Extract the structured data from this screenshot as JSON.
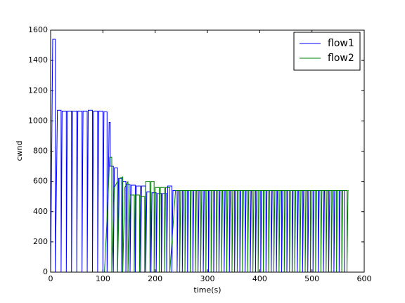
{
  "chart_data": {
    "type": "line",
    "xlabel": "time(s)",
    "ylabel": "cwnd",
    "xlim": [
      0,
      600
    ],
    "xticks": [
      0,
      100,
      200,
      300,
      400,
      500,
      600
    ],
    "ylim": [
      0,
      1600
    ],
    "yticks": [
      0,
      200,
      400,
      600,
      800,
      1000,
      1200,
      1400,
      1600
    ],
    "grid": false,
    "legend": "upper right",
    "series": [
      {
        "name": "flow1",
        "color": "#0000ff",
        "x": [
          0,
          4,
          9,
          9,
          13,
          20,
          20,
          22,
          30,
          30,
          32,
          40,
          40,
          42,
          50,
          50,
          52,
          60,
          60,
          62,
          70,
          70,
          72,
          80,
          80,
          82,
          90,
          90,
          92,
          100,
          100,
          102,
          108,
          108,
          112,
          114,
          114,
          120,
          120,
          122,
          128,
          128,
          130,
          136,
          136,
          138,
          144,
          144,
          146,
          152,
          152,
          154,
          162,
          162,
          164,
          172,
          172,
          174,
          182,
          182,
          184,
          192,
          192,
          194,
          202,
          202,
          204,
          212,
          212,
          214,
          222,
          222,
          224,
          232,
          232,
          234,
          242,
          242,
          244,
          252,
          252,
          254,
          262,
          262,
          264,
          272,
          272,
          274,
          282,
          282,
          284,
          292,
          292,
          294,
          302,
          302,
          304,
          312,
          312,
          314,
          322,
          322,
          324,
          332,
          332,
          334,
          342,
          342,
          344,
          352,
          352,
          354,
          362,
          362,
          364,
          372,
          372,
          374,
          382,
          382,
          384,
          392,
          392,
          394,
          402,
          402,
          404,
          412,
          412,
          414,
          422,
          422,
          424,
          432,
          432,
          434,
          442,
          442,
          444,
          452,
          452,
          454,
          462,
          462,
          464,
          472,
          472,
          474,
          482,
          482,
          484,
          492,
          492,
          494,
          502,
          502,
          504,
          512,
          512,
          514,
          522,
          522,
          524,
          532,
          532,
          534,
          542,
          542,
          544,
          552,
          552,
          554,
          562,
          562
        ],
        "values": [
          0,
          1540,
          1540,
          0,
          1070,
          1070,
          0,
          1065,
          1065,
          0,
          1065,
          1065,
          0,
          1065,
          1065,
          0,
          1065,
          1065,
          0,
          1065,
          1065,
          0,
          1070,
          1070,
          0,
          1065,
          1065,
          0,
          1065,
          1065,
          0,
          1060,
          1060,
          0,
          990,
          990,
          700,
          700,
          0,
          690,
          690,
          0,
          620,
          620,
          0,
          600,
          600,
          0,
          580,
          580,
          0,
          575,
          575,
          0,
          570,
          570,
          0,
          570,
          570,
          0,
          530,
          530,
          0,
          525,
          525,
          0,
          520,
          520,
          0,
          520,
          520,
          0,
          570,
          570,
          0,
          540,
          540,
          0,
          540,
          540,
          0,
          540,
          540,
          0,
          540,
          540,
          0,
          540,
          540,
          0,
          540,
          540,
          0,
          540,
          540,
          0,
          540,
          540,
          0,
          540,
          540,
          0,
          540,
          540,
          0,
          540,
          540,
          0,
          540,
          540,
          0,
          540,
          540,
          0,
          540,
          540,
          0,
          540,
          540,
          0,
          540,
          540,
          0,
          540,
          540,
          0,
          540,
          540,
          0,
          540,
          540,
          0,
          540,
          540,
          0,
          540,
          540,
          0,
          540,
          540,
          0,
          540,
          540,
          0,
          540,
          540,
          0,
          540,
          540,
          0,
          540,
          540,
          0,
          540,
          540,
          0,
          540,
          540,
          0,
          540,
          540,
          0,
          540,
          540,
          0,
          540,
          540,
          0,
          540,
          540,
          0,
          540,
          540,
          0
        ]
      },
      {
        "name": "flow2",
        "color": "#008000",
        "x": [
          0,
          103,
          110,
          113,
          117,
          117,
          122,
          128,
          128,
          132,
          138,
          138,
          142,
          148,
          148,
          152,
          160,
          160,
          162,
          170,
          170,
          172,
          180,
          180,
          182,
          190,
          190,
          192,
          198,
          198,
          200,
          208,
          208,
          210,
          218,
          218,
          220,
          228,
          228,
          239,
          247,
          247,
          249,
          257,
          257,
          259,
          267,
          267,
          269,
          277,
          277,
          279,
          287,
          287,
          289,
          297,
          297,
          299,
          307,
          307,
          309,
          317,
          317,
          319,
          327,
          327,
          329,
          337,
          337,
          339,
          347,
          347,
          349,
          357,
          357,
          359,
          367,
          367,
          369,
          377,
          377,
          379,
          387,
          387,
          389,
          397,
          397,
          399,
          407,
          407,
          409,
          417,
          417,
          419,
          427,
          427,
          429,
          437,
          437,
          439,
          447,
          447,
          449,
          457,
          457,
          459,
          467,
          467,
          469,
          477,
          477,
          479,
          487,
          487,
          489,
          497,
          497,
          499,
          507,
          507,
          509,
          517,
          517,
          519,
          527,
          527,
          529,
          537,
          537,
          539,
          547,
          547,
          549,
          557,
          557,
          559,
          567,
          567,
          569,
          570
        ],
        "values": [
          0,
          0,
          500,
          760,
          760,
          0,
          560,
          600,
          0,
          620,
          630,
          0,
          560,
          600,
          0,
          510,
          510,
          0,
          510,
          510,
          0,
          500,
          500,
          0,
          600,
          600,
          0,
          600,
          600,
          0,
          560,
          560,
          0,
          560,
          560,
          0,
          560,
          560,
          0,
          540,
          540,
          0,
          540,
          540,
          0,
          540,
          540,
          0,
          540,
          540,
          0,
          540,
          540,
          0,
          540,
          540,
          0,
          540,
          540,
          0,
          540,
          540,
          0,
          540,
          540,
          0,
          540,
          540,
          0,
          540,
          540,
          0,
          540,
          540,
          0,
          540,
          540,
          0,
          540,
          540,
          0,
          540,
          540,
          0,
          540,
          540,
          0,
          540,
          540,
          0,
          540,
          540,
          0,
          540,
          540,
          0,
          540,
          540,
          0,
          540,
          540,
          0,
          540,
          540,
          0,
          540,
          540,
          0,
          540,
          540,
          0,
          540,
          540,
          0,
          540,
          540,
          0,
          540,
          540,
          0,
          540,
          540,
          0,
          540,
          540,
          0,
          540,
          540,
          0,
          540,
          540,
          0,
          540,
          540,
          0,
          540,
          540,
          0,
          540,
          540
        ]
      }
    ]
  }
}
